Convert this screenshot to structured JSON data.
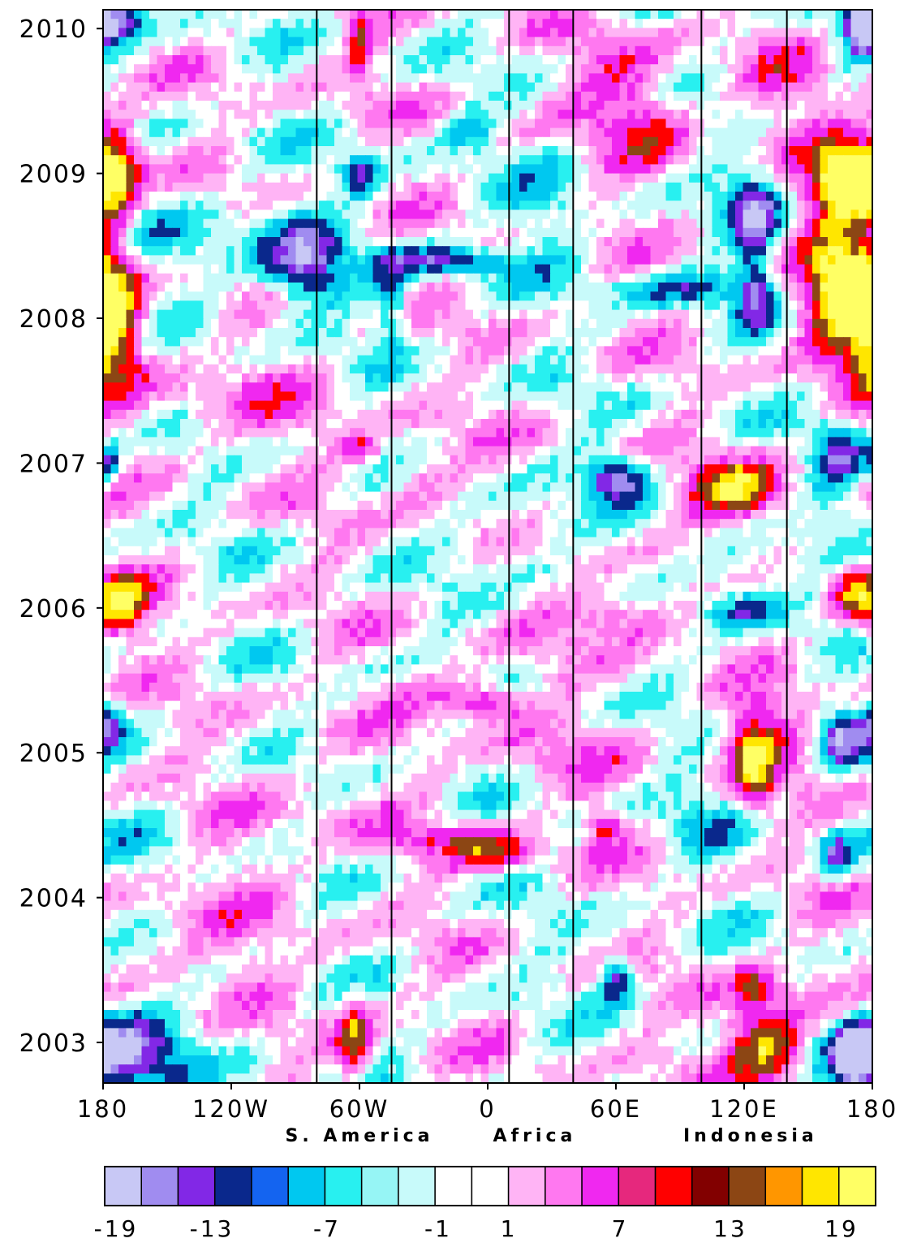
{
  "chart_data": {
    "type": "heatmap",
    "title": "",
    "xlabel": "",
    "ylabel": "",
    "x_tick_labels": [
      "180",
      "120W",
      "60W",
      "0",
      "60E",
      "120E",
      "180"
    ],
    "x_tick_values": [
      -180,
      -120,
      -60,
      0,
      60,
      120,
      180
    ],
    "x_range": [
      -180,
      180
    ],
    "y_tick_labels": [
      "2003",
      "2004",
      "2005",
      "2006",
      "2007",
      "2008",
      "2009",
      "2010"
    ],
    "y_tick_values": [
      2003,
      2004,
      2005,
      2006,
      2007,
      2008,
      2009,
      2010
    ],
    "y_range": [
      2002.72,
      2010.13
    ],
    "region_labels": [
      {
        "text": "S. America",
        "lon": -60
      },
      {
        "text": "Africa",
        "lon": 22
      },
      {
        "text": "Indonesia",
        "lon": 123
      }
    ],
    "vertical_lines_lon": [
      -80,
      -45,
      10,
      40,
      100,
      140
    ],
    "colorbar": {
      "levels": [
        -19,
        -16,
        -13,
        -10,
        -7,
        -4,
        -1,
        1,
        4,
        7,
        10,
        13,
        16,
        19
      ],
      "tick_labels": [
        "-19",
        "-13",
        "-7",
        "-1",
        "1",
        "7",
        "13",
        "19"
      ],
      "colors": [
        "#c8c8f5",
        "#a08cf0",
        "#8228e6",
        "#0a288c",
        "#1464f0",
        "#00c8f0",
        "#28f0f0",
        "#96f5f5",
        "#c8fafa",
        "#ffffff",
        "#ffffff",
        "#ffb4f5",
        "#ff78f0",
        "#f028f0",
        "#e6287d",
        "#ff0000",
        "#820000",
        "#8c4614",
        "#ff9600",
        "#ffe600",
        "#ffff64"
      ]
    },
    "anomalies": [
      {
        "lon": -175,
        "t": 2009.0,
        "v": 22,
        "rx": 12,
        "ry": 0.35
      },
      {
        "lon": -175,
        "t": 2008.0,
        "v": 22,
        "rx": 14,
        "ry": 0.45
      },
      {
        "lon": -172,
        "t": 2006.0,
        "v": 16,
        "rx": 14,
        "ry": 0.22
      },
      {
        "lon": -178,
        "t": 2005.2,
        "v": -13,
        "rx": 8,
        "ry": 0.15
      },
      {
        "lon": -178,
        "t": 2007.0,
        "v": -13,
        "rx": 6,
        "ry": 0.12
      },
      {
        "lon": -175,
        "t": 2002.9,
        "v": -19,
        "rx": 28,
        "ry": 0.35
      },
      {
        "lon": -175,
        "t": 2010.05,
        "v": -19,
        "rx": 14,
        "ry": 0.15
      },
      {
        "lon": -85,
        "t": 2008.35,
        "v": -14,
        "rx": 16,
        "ry": 0.28
      },
      {
        "lon": -120,
        "t": 2008.5,
        "v": -6,
        "rx": 45,
        "ry": 0.35
      },
      {
        "lon": -60,
        "t": 2009.0,
        "v": -14,
        "rx": 8,
        "ry": 0.15
      },
      {
        "lon": -60,
        "t": 2009.9,
        "v": 12,
        "rx": 5,
        "ry": 0.25
      },
      {
        "lon": -62,
        "t": 2003.0,
        "v": 15,
        "rx": 8,
        "ry": 0.3
      },
      {
        "lon": -45,
        "t": 2008.1,
        "v": -9,
        "rx": 8,
        "ry": 0.3
      },
      {
        "lon": -20,
        "t": 2008.4,
        "v": -15,
        "rx": 28,
        "ry": 0.1
      },
      {
        "lon": -10,
        "t": 2009.3,
        "v": -9,
        "rx": 10,
        "ry": 0.12
      },
      {
        "lon": -60,
        "t": 2007.1,
        "v": 10,
        "rx": 10,
        "ry": 0.1
      },
      {
        "lon": -30,
        "t": 2006.9,
        "v": 6,
        "rx": 18,
        "ry": 0.25
      },
      {
        "lon": 0,
        "t": 2005.35,
        "v": 12,
        "rx": 15,
        "ry": 0.12
      },
      {
        "lon": -20,
        "t": 2005.4,
        "v": 7,
        "rx": 25,
        "ry": 0.15
      },
      {
        "lon": 5,
        "t": 2004.3,
        "v": 12,
        "rx": 18,
        "ry": 0.12
      },
      {
        "lon": -20,
        "t": 2004.4,
        "v": 7,
        "rx": 30,
        "ry": 0.1
      },
      {
        "lon": 55,
        "t": 2004.5,
        "v": 11,
        "rx": 8,
        "ry": 0.12
      },
      {
        "lon": 60,
        "t": 2006.9,
        "v": -16,
        "rx": 14,
        "ry": 0.15
      },
      {
        "lon": 60,
        "t": 2003.45,
        "v": -16,
        "rx": 8,
        "ry": 0.15
      },
      {
        "lon": 65,
        "t": 2005.95,
        "v": 11,
        "rx": 25,
        "ry": 0.18
      },
      {
        "lon": 118,
        "t": 2006.8,
        "v": 17,
        "rx": 22,
        "ry": 0.2
      },
      {
        "lon": 125,
        "t": 2005.1,
        "v": 15,
        "rx": 16,
        "ry": 0.25
      },
      {
        "lon": 125,
        "t": 2004.8,
        "v": 10,
        "rx": 8,
        "ry": 0.25
      },
      {
        "lon": 130,
        "t": 2003.0,
        "v": 20,
        "rx": 20,
        "ry": 0.3
      },
      {
        "lon": 125,
        "t": 2003.4,
        "v": 11,
        "rx": 10,
        "ry": 0.15
      },
      {
        "lon": 125,
        "t": 2008.75,
        "v": -15,
        "rx": 12,
        "ry": 0.3
      },
      {
        "lon": 125,
        "t": 2008.2,
        "v": -12,
        "rx": 8,
        "ry": 0.3
      },
      {
        "lon": 90,
        "t": 2008.2,
        "v": -10,
        "rx": 30,
        "ry": 0.12
      },
      {
        "lon": 120,
        "t": 2006.0,
        "v": -11,
        "rx": 20,
        "ry": 0.15
      },
      {
        "lon": 115,
        "t": 2006.3,
        "v": -8,
        "rx": 20,
        "ry": 0.15
      },
      {
        "lon": 165,
        "t": 2008.2,
        "v": 21,
        "rx": 18,
        "ry": 0.5
      },
      {
        "lon": 165,
        "t": 2009.0,
        "v": 21,
        "rx": 14,
        "ry": 0.3
      },
      {
        "lon": 170,
        "t": 2006.1,
        "v": 12,
        "rx": 10,
        "ry": 0.2
      },
      {
        "lon": 165,
        "t": 2007.0,
        "v": -15,
        "rx": 12,
        "ry": 0.25
      },
      {
        "lon": 165,
        "t": 2005.1,
        "v": -15,
        "rx": 10,
        "ry": 0.2
      },
      {
        "lon": 163,
        "t": 2004.3,
        "v": -14,
        "rx": 8,
        "ry": 0.15
      },
      {
        "lon": 175,
        "t": 2010.0,
        "v": -18,
        "rx": 8,
        "ry": 0.2
      },
      {
        "lon": 172,
        "t": 2002.9,
        "v": -19,
        "rx": 8,
        "ry": 0.2
      },
      {
        "lon": 75,
        "t": 2009.3,
        "v": 9,
        "rx": 20,
        "ry": 0.35
      },
      {
        "lon": 60,
        "t": 2009.7,
        "v": 6,
        "rx": 25,
        "ry": 0.3
      },
      {
        "lon": -100,
        "t": 2004.5,
        "v": 3,
        "rx": 40,
        "ry": 0.5
      },
      {
        "lon": -140,
        "t": 2003.6,
        "v": 4,
        "rx": 40,
        "ry": 0.35
      },
      {
        "lon": -120,
        "t": 2007.4,
        "v": 4,
        "rx": 50,
        "ry": 0.3
      },
      {
        "lon": 20,
        "t": 2006.5,
        "v": -4,
        "rx": 25,
        "ry": 0.3
      },
      {
        "lon": 30,
        "t": 2008.8,
        "v": -5,
        "rx": 20,
        "ry": 0.4
      },
      {
        "lon": 100,
        "t": 2004.5,
        "v": -4,
        "rx": 20,
        "ry": 0.3
      },
      {
        "lon": -150,
        "t": 2004.5,
        "v": -3,
        "rx": 25,
        "ry": 0.3
      },
      {
        "lon": 30,
        "t": 2005.0,
        "v": 4,
        "rx": 30,
        "ry": 0.3
      },
      {
        "lon": 140,
        "t": 2009.6,
        "v": 5,
        "rx": 20,
        "ry": 0.3
      }
    ]
  }
}
